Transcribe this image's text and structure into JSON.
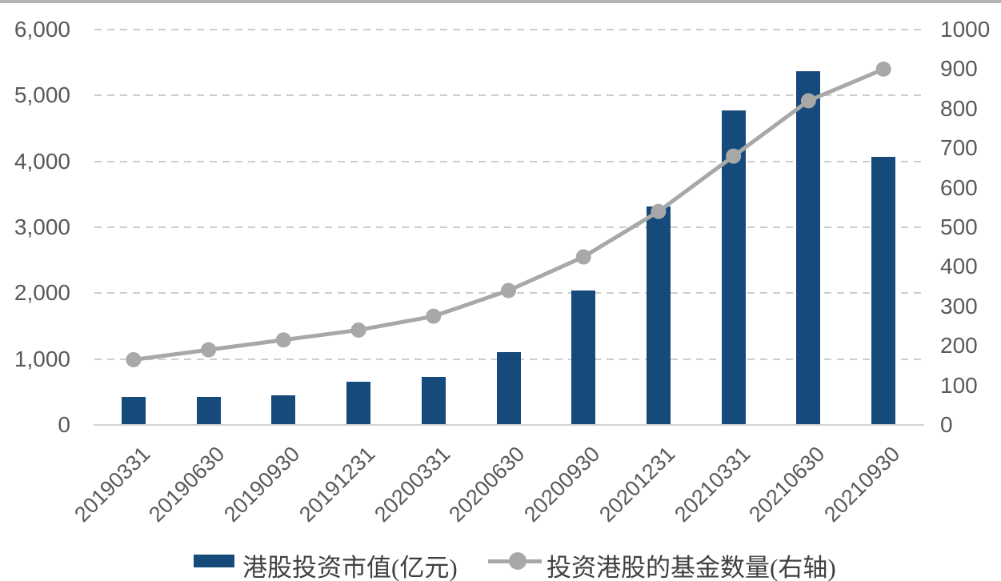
{
  "chart_data": {
    "type": "bar",
    "subtype": "dual-axis bar + line combo",
    "categories": [
      "20190331",
      "20190630",
      "20190930",
      "20191231",
      "20200331",
      "20200630",
      "20200930",
      "20201231",
      "20210331",
      "20210630",
      "20210930"
    ],
    "series": [
      {
        "name": "港股投资市值(亿元)",
        "type": "bar",
        "axis": "left",
        "values": [
          430,
          430,
          455,
          660,
          730,
          1110,
          2040,
          3310,
          4770,
          5370,
          4070
        ]
      },
      {
        "name": "投资港股的基金数量(右轴)",
        "type": "line",
        "axis": "right",
        "values": [
          165,
          190,
          215,
          240,
          275,
          340,
          425,
          540,
          680,
          820,
          900
        ]
      }
    ],
    "title": "",
    "xlabel": "",
    "ylabel_left": "",
    "ylabel_right": "",
    "left_axis": {
      "min": 0,
      "max": 6000,
      "step": 1000,
      "tick_labels": [
        "6,000",
        "5,000",
        "4,000",
        "3,000",
        "2,000",
        "1,000",
        "0"
      ]
    },
    "right_axis": {
      "min": 0,
      "max": 1000,
      "step": 100,
      "tick_labels": [
        "1000",
        "900",
        "800",
        "700",
        "600",
        "500",
        "400",
        "300",
        "200",
        "100",
        "0"
      ]
    },
    "grid": "horizontal dashed gridlines at left-axis steps, solid baseline",
    "legend_position": "bottom center",
    "x_tick_rotation_deg": -45
  },
  "legend": {
    "items": [
      {
        "label": "港股投资市值(亿元)",
        "swatch": "bar"
      },
      {
        "label": "投资港股的基金数量(右轴)",
        "swatch": "line-marker"
      }
    ]
  },
  "colors": {
    "bar": "#164A7B",
    "line": "#A8A8A8",
    "marker": "#A8A8A8",
    "axis_text": "#595959",
    "legend_text": "#404040",
    "gridline": "#CDCDCD",
    "baseline": "#D4D4D4",
    "top_edge": "#B3B3B3",
    "background": "#FFFFFF"
  }
}
